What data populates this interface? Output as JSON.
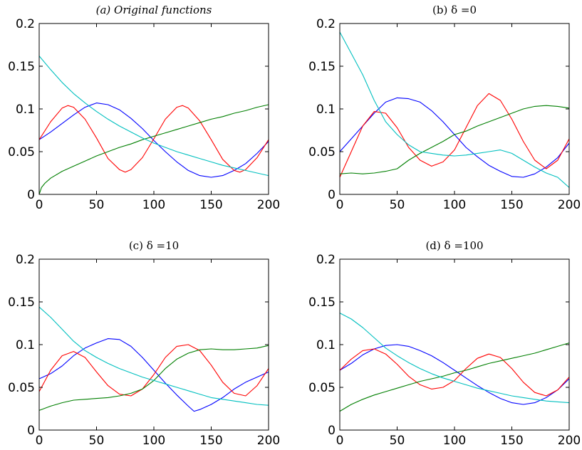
{
  "colors": {
    "blue": "#0000ff",
    "green": "#007f00",
    "red": "#ff0000",
    "cyan": "#00bfbf"
  },
  "chart_data": [
    {
      "type": "line",
      "title": "(a) Original functions",
      "title_style": "italic",
      "xlim": [
        0,
        200
      ],
      "ylim": [
        0,
        0.2
      ],
      "xticks": [
        "0",
        "50",
        "100",
        "150",
        "200"
      ],
      "yticks": [
        "0",
        "0.05",
        "0.1",
        "0.15",
        "0.2"
      ],
      "series": [
        {
          "color": "blue",
          "x": [
            0,
            10,
            20,
            30,
            40,
            50,
            60,
            70,
            80,
            90,
            100,
            110,
            120,
            130,
            140,
            150,
            160,
            170,
            180,
            190,
            200
          ],
          "y": [
            0.064,
            0.073,
            0.083,
            0.093,
            0.102,
            0.107,
            0.105,
            0.099,
            0.089,
            0.077,
            0.063,
            0.05,
            0.038,
            0.028,
            0.022,
            0.02,
            0.022,
            0.028,
            0.036,
            0.048,
            0.062
          ]
        },
        {
          "color": "red",
          "x": [
            0,
            10,
            20,
            25,
            30,
            40,
            50,
            60,
            70,
            75,
            80,
            90,
            100,
            110,
            120,
            125,
            130,
            140,
            150,
            160,
            170,
            175,
            180,
            190,
            200
          ],
          "y": [
            0.064,
            0.085,
            0.101,
            0.104,
            0.102,
            0.088,
            0.066,
            0.042,
            0.029,
            0.026,
            0.029,
            0.043,
            0.065,
            0.088,
            0.102,
            0.104,
            0.101,
            0.086,
            0.064,
            0.041,
            0.028,
            0.026,
            0.029,
            0.043,
            0.064
          ]
        },
        {
          "color": "green",
          "x": [
            0,
            2,
            5,
            10,
            20,
            30,
            40,
            50,
            60,
            70,
            80,
            90,
            100,
            110,
            120,
            130,
            140,
            150,
            160,
            170,
            180,
            190,
            200
          ],
          "y": [
            0.0,
            0.008,
            0.013,
            0.019,
            0.027,
            0.033,
            0.039,
            0.045,
            0.05,
            0.055,
            0.059,
            0.064,
            0.068,
            0.072,
            0.076,
            0.08,
            0.084,
            0.088,
            0.091,
            0.095,
            0.098,
            0.102,
            0.105
          ]
        },
        {
          "color": "cyan",
          "x": [
            0,
            10,
            20,
            30,
            40,
            50,
            60,
            70,
            80,
            90,
            100,
            110,
            120,
            130,
            140,
            150,
            160,
            170,
            180,
            190,
            200
          ],
          "y": [
            0.162,
            0.146,
            0.131,
            0.118,
            0.107,
            0.097,
            0.088,
            0.08,
            0.073,
            0.066,
            0.06,
            0.055,
            0.05,
            0.046,
            0.042,
            0.038,
            0.034,
            0.031,
            0.028,
            0.025,
            0.022
          ]
        }
      ]
    },
    {
      "type": "line",
      "title": "(b) δ =0",
      "xlim": [
        0,
        200
      ],
      "ylim": [
        0,
        0.2
      ],
      "xticks": [
        "0",
        "50",
        "100",
        "150",
        "200"
      ],
      "yticks": [
        "0",
        "0.05",
        "0.1",
        "0.15",
        "0.2"
      ],
      "series": [
        {
          "color": "blue",
          "x": [
            0,
            10,
            20,
            30,
            40,
            50,
            60,
            70,
            80,
            90,
            100,
            110,
            120,
            130,
            140,
            150,
            160,
            170,
            180,
            190,
            200
          ],
          "y": [
            0.05,
            0.065,
            0.08,
            0.095,
            0.108,
            0.113,
            0.112,
            0.108,
            0.098,
            0.085,
            0.07,
            0.055,
            0.044,
            0.034,
            0.027,
            0.021,
            0.02,
            0.024,
            0.032,
            0.043,
            0.06
          ]
        },
        {
          "color": "red",
          "x": [
            0,
            10,
            20,
            30,
            40,
            50,
            60,
            70,
            80,
            90,
            100,
            110,
            120,
            130,
            140,
            150,
            160,
            170,
            180,
            190,
            200
          ],
          "y": [
            0.02,
            0.05,
            0.08,
            0.097,
            0.095,
            0.078,
            0.055,
            0.04,
            0.033,
            0.038,
            0.052,
            0.078,
            0.104,
            0.118,
            0.11,
            0.088,
            0.062,
            0.04,
            0.03,
            0.04,
            0.065
          ]
        },
        {
          "color": "green",
          "x": [
            0,
            10,
            20,
            30,
            40,
            50,
            60,
            70,
            80,
            90,
            100,
            110,
            120,
            130,
            140,
            150,
            160,
            170,
            180,
            190,
            200
          ],
          "y": [
            0.024,
            0.025,
            0.024,
            0.025,
            0.027,
            0.03,
            0.04,
            0.048,
            0.055,
            0.062,
            0.07,
            0.074,
            0.08,
            0.085,
            0.09,
            0.095,
            0.1,
            0.103,
            0.104,
            0.103,
            0.101
          ]
        },
        {
          "color": "cyan",
          "x": [
            0,
            10,
            20,
            30,
            40,
            50,
            60,
            70,
            80,
            90,
            100,
            110,
            120,
            130,
            140,
            150,
            160,
            170,
            180,
            190,
            200
          ],
          "y": [
            0.19,
            0.165,
            0.14,
            0.11,
            0.085,
            0.07,
            0.058,
            0.05,
            0.048,
            0.046,
            0.045,
            0.046,
            0.048,
            0.05,
            0.052,
            0.048,
            0.04,
            0.032,
            0.025,
            0.02,
            0.008
          ]
        }
      ]
    },
    {
      "type": "line",
      "title": "(c) δ =10",
      "xlim": [
        0,
        200
      ],
      "ylim": [
        0,
        0.2
      ],
      "xticks": [
        "0",
        "50",
        "100",
        "150",
        "200"
      ],
      "yticks": [
        "0",
        "0.05",
        "0.1",
        "0.15",
        "0.2"
      ],
      "series": [
        {
          "color": "blue",
          "x": [
            0,
            10,
            20,
            30,
            40,
            50,
            60,
            70,
            80,
            90,
            100,
            110,
            120,
            130,
            135,
            140,
            150,
            160,
            170,
            180,
            190,
            200
          ],
          "y": [
            0.06,
            0.066,
            0.075,
            0.087,
            0.096,
            0.102,
            0.107,
            0.106,
            0.098,
            0.085,
            0.07,
            0.055,
            0.041,
            0.028,
            0.022,
            0.024,
            0.03,
            0.038,
            0.048,
            0.056,
            0.062,
            0.068
          ]
        },
        {
          "color": "red",
          "x": [
            0,
            10,
            20,
            30,
            40,
            50,
            60,
            70,
            80,
            90,
            100,
            110,
            120,
            130,
            140,
            150,
            160,
            170,
            180,
            190,
            200
          ],
          "y": [
            0.045,
            0.07,
            0.087,
            0.092,
            0.085,
            0.068,
            0.052,
            0.042,
            0.04,
            0.048,
            0.065,
            0.085,
            0.098,
            0.1,
            0.093,
            0.076,
            0.056,
            0.043,
            0.04,
            0.052,
            0.072
          ]
        },
        {
          "color": "green",
          "x": [
            0,
            10,
            20,
            30,
            40,
            50,
            60,
            70,
            80,
            90,
            100,
            110,
            120,
            130,
            140,
            150,
            160,
            170,
            180,
            190,
            200
          ],
          "y": [
            0.023,
            0.028,
            0.032,
            0.035,
            0.036,
            0.037,
            0.038,
            0.04,
            0.043,
            0.048,
            0.058,
            0.072,
            0.083,
            0.09,
            0.094,
            0.095,
            0.094,
            0.094,
            0.095,
            0.096,
            0.099
          ]
        },
        {
          "color": "cyan",
          "x": [
            0,
            10,
            20,
            30,
            40,
            50,
            60,
            70,
            80,
            90,
            100,
            110,
            120,
            130,
            140,
            150,
            160,
            170,
            180,
            190,
            200
          ],
          "y": [
            0.144,
            0.132,
            0.118,
            0.104,
            0.093,
            0.085,
            0.078,
            0.072,
            0.067,
            0.062,
            0.058,
            0.054,
            0.05,
            0.046,
            0.042,
            0.038,
            0.036,
            0.034,
            0.032,
            0.03,
            0.029
          ]
        }
      ]
    },
    {
      "type": "line",
      "title": "(d) δ =100",
      "xlim": [
        0,
        200
      ],
      "ylim": [
        0,
        0.2
      ],
      "xticks": [
        "0",
        "50",
        "100",
        "150",
        "200"
      ],
      "yticks": [
        "0",
        "0.05",
        "0.1",
        "0.15",
        "0.2"
      ],
      "series": [
        {
          "color": "blue",
          "x": [
            0,
            10,
            20,
            30,
            40,
            50,
            60,
            70,
            80,
            90,
            100,
            110,
            120,
            130,
            140,
            150,
            160,
            170,
            180,
            190,
            200
          ],
          "y": [
            0.07,
            0.078,
            0.088,
            0.095,
            0.099,
            0.1,
            0.098,
            0.093,
            0.087,
            0.079,
            0.07,
            0.061,
            0.052,
            0.044,
            0.037,
            0.032,
            0.03,
            0.032,
            0.038,
            0.047,
            0.06
          ]
        },
        {
          "color": "red",
          "x": [
            0,
            10,
            20,
            30,
            40,
            50,
            60,
            70,
            80,
            90,
            100,
            110,
            120,
            130,
            140,
            150,
            160,
            170,
            180,
            190,
            200
          ],
          "y": [
            0.07,
            0.083,
            0.093,
            0.095,
            0.089,
            0.077,
            0.063,
            0.053,
            0.048,
            0.05,
            0.058,
            0.072,
            0.084,
            0.089,
            0.085,
            0.072,
            0.056,
            0.044,
            0.04,
            0.047,
            0.062
          ]
        },
        {
          "color": "green",
          "x": [
            0,
            10,
            20,
            30,
            40,
            50,
            60,
            70,
            80,
            90,
            100,
            110,
            120,
            130,
            140,
            150,
            160,
            170,
            180,
            190,
            200
          ],
          "y": [
            0.022,
            0.03,
            0.036,
            0.041,
            0.045,
            0.049,
            0.053,
            0.057,
            0.06,
            0.063,
            0.067,
            0.07,
            0.074,
            0.078,
            0.081,
            0.084,
            0.087,
            0.09,
            0.094,
            0.098,
            0.102
          ]
        },
        {
          "color": "cyan",
          "x": [
            0,
            10,
            20,
            30,
            40,
            50,
            60,
            70,
            80,
            90,
            100,
            110,
            120,
            130,
            140,
            150,
            160,
            170,
            180,
            190,
            200
          ],
          "y": [
            0.137,
            0.13,
            0.12,
            0.108,
            0.096,
            0.087,
            0.079,
            0.072,
            0.066,
            0.061,
            0.057,
            0.053,
            0.049,
            0.046,
            0.043,
            0.04,
            0.038,
            0.036,
            0.034,
            0.033,
            0.032
          ]
        }
      ]
    }
  ]
}
